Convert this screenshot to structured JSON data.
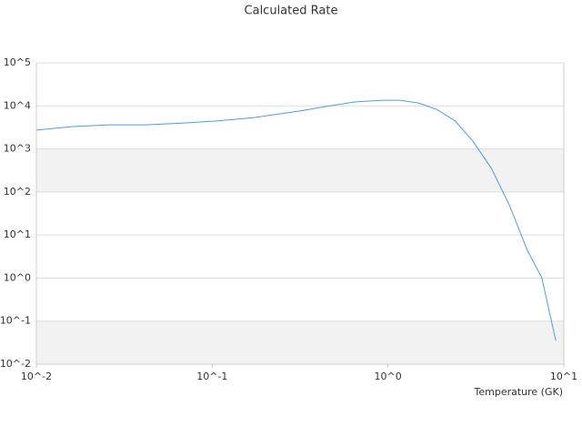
{
  "chart_data": {
    "type": "line",
    "title": "Calculated Rate",
    "x_label": "Temperature (GK)",
    "x_log": true,
    "y_log": true,
    "grid": true,
    "bands": true,
    "xlim": [
      0.01,
      10
    ],
    "ylim": [
      0.01,
      100000
    ],
    "xticks": [
      {
        "value": 0.01,
        "label": "10^-2"
      },
      {
        "value": 0.1,
        "label": "10^-1"
      },
      {
        "value": 1,
        "label": "10^0"
      },
      {
        "value": 10,
        "label": "10^1"
      }
    ],
    "yticks": [
      {
        "value": 0.01,
        "label": "10^-2"
      },
      {
        "value": 0.1,
        "label": "10^-1"
      },
      {
        "value": 1,
        "label": "10^0"
      },
      {
        "value": 10,
        "label": "10^1"
      },
      {
        "value": 100,
        "label": "10^2"
      },
      {
        "value": 1000,
        "label": "10^3"
      },
      {
        "value": 10000,
        "label": "10^4"
      },
      {
        "value": 100000,
        "label": "10^5"
      }
    ],
    "series": [
      {
        "color": "#4a9ee8",
        "x": [
          0.01,
          0.0161,
          0.026,
          0.0417,
          0.0673,
          0.108,
          0.174,
          0.22,
          0.316,
          0.45,
          0.645,
          0.925,
          1.17,
          1.49,
          1.89,
          2.41,
          3.04,
          3.87,
          4.9,
          6.2,
          7.5,
          9.0
        ],
        "values": [
          2730,
          3310,
          3630,
          3630,
          3980,
          4470,
          5370,
          6170,
          7590,
          9770,
          12300,
          13500,
          13500,
          11700,
          8300,
          4470,
          1510,
          355,
          50,
          4.4,
          1.02,
          0.035
        ]
      }
    ]
  }
}
